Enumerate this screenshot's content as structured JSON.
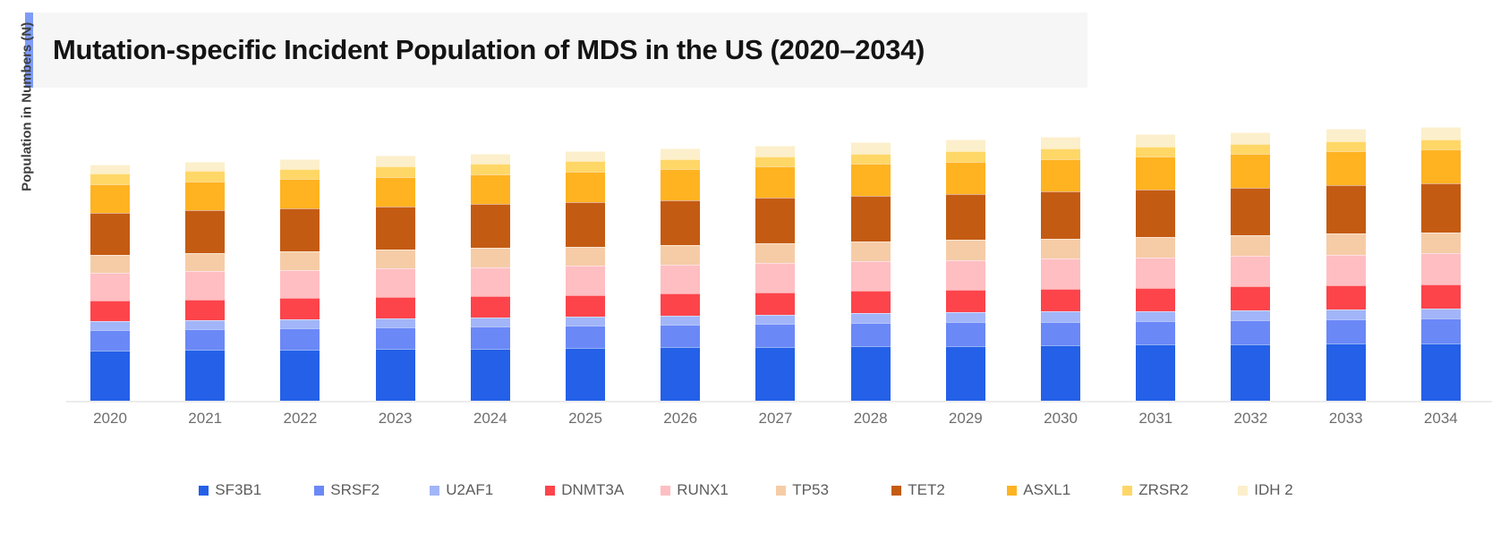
{
  "header": {
    "title": "Mutation-specific Incident Population of MDS in the US (2020–2034)",
    "accent_color": "#7E9CF7",
    "background_color": "#F6F6F6"
  },
  "chart": {
    "y_axis_label": "Population in Numbers (N)"
  },
  "chart_data": {
    "type": "bar",
    "stacked": true,
    "title": "Mutation-specific Incident Population of MDS in the US (2020–2034)",
    "xlabel": "",
    "ylabel": "Population in Numbers (N)",
    "y_axis_numeric_labels_shown": false,
    "value_unit": "relative height (chart shows no numeric axis ticks; values estimated in px)",
    "ylim": [
      0,
      320
    ],
    "grid": false,
    "legend_position": "bottom",
    "categories": [
      "2020",
      "2021",
      "2022",
      "2023",
      "2024",
      "2025",
      "2026",
      "2027",
      "2028",
      "2029",
      "2030",
      "2031",
      "2032",
      "2033",
      "2034"
    ],
    "series": [
      {
        "name": "SF3B1",
        "color": "#2460E8",
        "values": [
          56.0,
          56.6,
          57.2,
          57.8,
          58.4,
          59.0,
          59.6,
          60.2,
          60.9,
          61.5,
          62.1,
          62.7,
          63.3,
          63.9,
          64.5
        ]
      },
      {
        "name": "SRSF2",
        "color": "#6B88F7",
        "values": [
          23.5,
          23.8,
          24.1,
          24.4,
          24.6,
          24.9,
          25.2,
          25.5,
          25.8,
          26.1,
          26.4,
          26.6,
          26.9,
          27.2,
          27.5
        ]
      },
      {
        "name": "U2AF1",
        "color": "#A2B5F9",
        "values": [
          10.0,
          10.1,
          10.2,
          10.3,
          10.4,
          10.5,
          10.6,
          10.7,
          10.9,
          11.0,
          11.1,
          11.2,
          11.3,
          11.4,
          11.5
        ]
      },
      {
        "name": "DNMT3A",
        "color": "#FD444B",
        "values": [
          22.5,
          22.8,
          23.1,
          23.5,
          23.8,
          24.1,
          24.4,
          24.7,
          25.1,
          25.4,
          25.7,
          26.0,
          26.4,
          26.7,
          27.0
        ]
      },
      {
        "name": "RUNX1",
        "color": "#FFBEC2",
        "values": [
          31.0,
          31.3,
          31.5,
          31.8,
          32.0,
          32.3,
          32.5,
          32.8,
          33.0,
          33.3,
          33.5,
          33.8,
          34.0,
          34.3,
          34.5
        ]
      },
      {
        "name": "TP53",
        "color": "#F6CCA7",
        "values": [
          20.5,
          20.7,
          20.9,
          21.1,
          21.4,
          21.6,
          21.8,
          22.0,
          22.2,
          22.4,
          22.6,
          22.9,
          23.1,
          23.3,
          23.5
        ]
      },
      {
        "name": "TET2",
        "color": "#C45B12",
        "values": [
          47.0,
          47.5,
          48.1,
          48.6,
          49.1,
          49.7,
          50.2,
          50.8,
          51.3,
          51.8,
          52.4,
          52.9,
          53.4,
          54.0,
          54.5
        ]
      },
      {
        "name": "ASXL1",
        "color": "#FFB321",
        "values": [
          31.5,
          32.0,
          32.5,
          33.0,
          33.5,
          34.0,
          34.5,
          35.0,
          35.5,
          36.0,
          36.5,
          37.0,
          37.5,
          38.0,
          38.5
        ]
      },
      {
        "name": "ZRSR2",
        "color": "#FFD767",
        "values": [
          12.0,
          11.9,
          11.9,
          11.8,
          11.7,
          11.6,
          11.6,
          11.5,
          11.4,
          11.4,
          11.3,
          11.2,
          11.1,
          11.1,
          11.0
        ]
      },
      {
        "name": "IDH 2",
        "color": "#FCEFCB",
        "values": [
          10.5,
          10.8,
          11.0,
          11.3,
          11.5,
          11.8,
          12.0,
          12.3,
          12.5,
          12.8,
          13.0,
          13.3,
          13.5,
          13.8,
          14.0
        ]
      }
    ]
  }
}
